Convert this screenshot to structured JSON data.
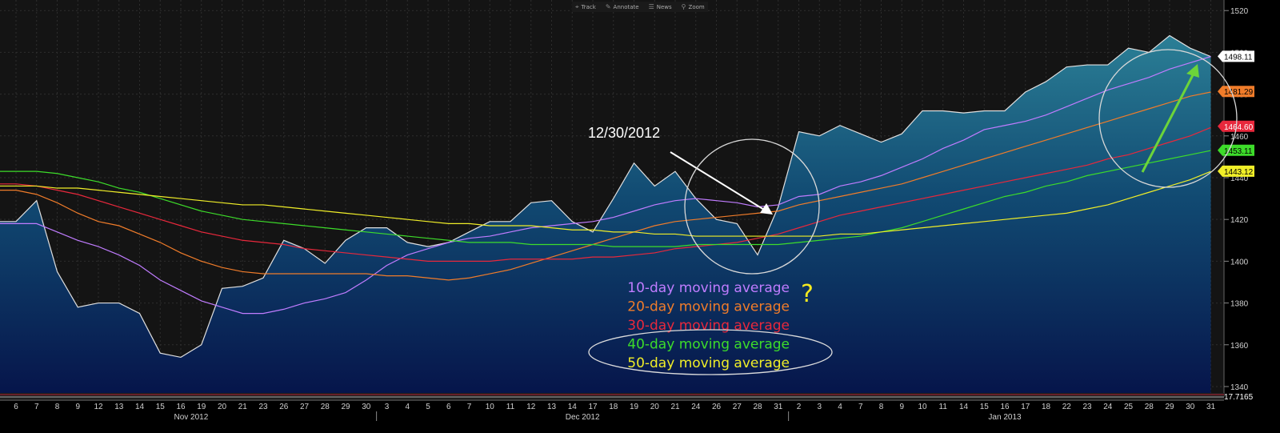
{
  "toolbar": {
    "buttons": [
      {
        "label": "Track",
        "icon": "track-icon"
      },
      {
        "label": "Annotate",
        "icon": "pencil-icon"
      },
      {
        "label": "News",
        "icon": "news-icon"
      },
      {
        "label": "Zoom",
        "icon": "zoom-icon"
      }
    ]
  },
  "annotations": {
    "date_label": "12/30/2012",
    "question_mark": "?",
    "legend": [
      {
        "text": "10-day moving average",
        "color": "#c07cff"
      },
      {
        "text": "20-day moving average",
        "color": "#f07c2a"
      },
      {
        "text": "30-day moving average",
        "color": "#e8283c"
      },
      {
        "text": "40-day moving average",
        "color": "#3ddc2a"
      },
      {
        "text": "50-day moving average",
        "color": "#f0ee28"
      }
    ]
  },
  "price_tags": [
    {
      "text": "1498.11",
      "value": 1498.11,
      "bg": "#ffffff",
      "fg": "#000000"
    },
    {
      "text": "1481.29",
      "value": 1481.29,
      "bg": "#f07c2a",
      "fg": "#000000"
    },
    {
      "text": "1464.60",
      "value": 1464.6,
      "bg": "#e8283c",
      "fg": "#ffffff"
    },
    {
      "text": "1453.11",
      "value": 1453.11,
      "bg": "#3ddc2a",
      "fg": "#000000"
    },
    {
      "text": "1443.12",
      "value": 1443.12,
      "bg": "#f0ee28",
      "fg": "#000000"
    }
  ],
  "lower_panel_label": "17.7165",
  "chart_data": {
    "type": "line",
    "x": [
      "Nov 6",
      "Nov 7",
      "Nov 8",
      "Nov 9",
      "Nov 12",
      "Nov 13",
      "Nov 14",
      "Nov 15",
      "Nov 16",
      "Nov 19",
      "Nov 20",
      "Nov 21",
      "Nov 23",
      "Nov 26",
      "Nov 27",
      "Nov 28",
      "Nov 29",
      "Nov 30",
      "Dec 3",
      "Dec 4",
      "Dec 5",
      "Dec 6",
      "Dec 7",
      "Dec 10",
      "Dec 11",
      "Dec 12",
      "Dec 13",
      "Dec 14",
      "Dec 17",
      "Dec 18",
      "Dec 19",
      "Dec 20",
      "Dec 21",
      "Dec 24",
      "Dec 26",
      "Dec 27",
      "Dec 28",
      "Dec 31",
      "Jan 2",
      "Jan 3",
      "Jan 4",
      "Jan 7",
      "Jan 8",
      "Jan 9",
      "Jan 10",
      "Jan 11",
      "Jan 14",
      "Jan 15",
      "Jan 16",
      "Jan 17",
      "Jan 18",
      "Jan 22",
      "Jan 23",
      "Jan 24",
      "Jan 25",
      "Jan 28",
      "Jan 29",
      "Jan 30",
      "Jan 31"
    ],
    "x_tick_labels": [
      "6",
      "7",
      "8",
      "9",
      "12",
      "13",
      "14",
      "15",
      "16",
      "19",
      "20",
      "21",
      "23",
      "26",
      "27",
      "28",
      "29",
      "30",
      "3",
      "4",
      "5",
      "6",
      "7",
      "10",
      "11",
      "12",
      "13",
      "14",
      "17",
      "18",
      "19",
      "20",
      "21",
      "24",
      "26",
      "27",
      "28",
      "31",
      "2",
      "3",
      "4",
      "7",
      "8",
      "9",
      "10",
      "11",
      "14",
      "15",
      "16",
      "17",
      "18",
      "22",
      "23",
      "24",
      "25",
      "28",
      "29",
      "30",
      "31"
    ],
    "month_labels": [
      {
        "label": "Nov 2012",
        "start": 0,
        "end": 17
      },
      {
        "label": "Dec 2012",
        "start": 18,
        "end": 37
      },
      {
        "label": "Jan 2013",
        "start": 38,
        "end": 58
      }
    ],
    "ylim": [
      1335,
      1522
    ],
    "yticks": [
      1340,
      1360,
      1380,
      1400,
      1420,
      1440,
      1460,
      1480,
      1500,
      1520
    ],
    "grid": true,
    "series": [
      {
        "name": "",
        "kind": "area",
        "color": "#e0e0e0",
        "values": [
          1419,
          1429,
          1395,
          1378,
          1380,
          1380,
          1375,
          1356,
          1354,
          1360,
          1387,
          1388,
          1392,
          1410,
          1406,
          1399,
          1410,
          1416,
          1416,
          1409,
          1407,
          1409,
          1414,
          1419,
          1419,
          1428,
          1429,
          1419,
          1414,
          1430,
          1447,
          1436,
          1443,
          1430,
          1420,
          1418,
          1403,
          1426,
          1462,
          1460,
          1465,
          1461,
          1457,
          1461,
          1472,
          1472,
          1471,
          1472,
          1472,
          1481,
          1486,
          1493,
          1494,
          1494,
          1502,
          1500,
          1508,
          1502,
          1498
        ]
      },
      {
        "name": "10-day moving average",
        "color": "#c07cff",
        "values": [
          1418,
          1418,
          1414,
          1410,
          1407,
          1403,
          1398,
          1391,
          1386,
          1381,
          1378,
          1375,
          1375,
          1377,
          1380,
          1382,
          1385,
          1391,
          1398,
          1403,
          1406,
          1409,
          1411,
          1412,
          1414,
          1416,
          1417,
          1418,
          1419,
          1421,
          1424,
          1427,
          1429,
          1430,
          1429,
          1428,
          1426,
          1427,
          1431,
          1432,
          1436,
          1438,
          1441,
          1445,
          1449,
          1454,
          1458,
          1463,
          1465,
          1467,
          1470,
          1474,
          1478,
          1482,
          1485,
          1488,
          1492,
          1495,
          1498
        ]
      },
      {
        "name": "20-day moving average",
        "color": "#f07c2a",
        "values": [
          1434,
          1432,
          1428,
          1423,
          1419,
          1417,
          1413,
          1409,
          1404,
          1400,
          1397,
          1395,
          1394,
          1394,
          1394,
          1394,
          1394,
          1394,
          1393,
          1393,
          1392,
          1391,
          1392,
          1394,
          1396,
          1399,
          1402,
          1405,
          1408,
          1411,
          1414,
          1417,
          1419,
          1420,
          1421,
          1422,
          1423,
          1424,
          1427,
          1429,
          1431,
          1433,
          1435,
          1437,
          1440,
          1443,
          1446,
          1449,
          1452,
          1455,
          1458,
          1461,
          1464,
          1467,
          1470,
          1473,
          1476,
          1479,
          1481
        ]
      },
      {
        "name": "30-day moving average",
        "color": "#e8283c",
        "values": [
          1437,
          1436,
          1434,
          1432,
          1429,
          1426,
          1423,
          1420,
          1417,
          1414,
          1412,
          1410,
          1409,
          1408,
          1406,
          1405,
          1404,
          1403,
          1402,
          1401,
          1400,
          1400,
          1400,
          1400,
          1401,
          1401,
          1401,
          1401,
          1402,
          1402,
          1403,
          1404,
          1406,
          1407,
          1408,
          1409,
          1411,
          1413,
          1416,
          1419,
          1422,
          1424,
          1426,
          1428,
          1430,
          1432,
          1434,
          1436,
          1438,
          1440,
          1442,
          1444,
          1446,
          1449,
          1451,
          1454,
          1457,
          1460,
          1464
        ]
      },
      {
        "name": "40-day moving average",
        "color": "#3ddc2a",
        "values": [
          1443,
          1443,
          1442,
          1440,
          1438,
          1435,
          1433,
          1430,
          1427,
          1424,
          1422,
          1420,
          1419,
          1418,
          1417,
          1416,
          1415,
          1414,
          1413,
          1412,
          1411,
          1410,
          1409,
          1409,
          1409,
          1408,
          1408,
          1408,
          1408,
          1407,
          1407,
          1407,
          1407,
          1408,
          1408,
          1408,
          1408,
          1408,
          1409,
          1410,
          1411,
          1412,
          1414,
          1416,
          1419,
          1422,
          1425,
          1428,
          1431,
          1433,
          1436,
          1438,
          1441,
          1443,
          1445,
          1447,
          1449,
          1451,
          1453
        ]
      },
      {
        "name": "50-day moving average",
        "color": "#f0ee28",
        "values": [
          1436,
          1436,
          1435,
          1435,
          1434,
          1433,
          1432,
          1431,
          1430,
          1429,
          1428,
          1427,
          1427,
          1426,
          1425,
          1424,
          1423,
          1422,
          1421,
          1420,
          1419,
          1418,
          1418,
          1417,
          1417,
          1417,
          1416,
          1415,
          1415,
          1414,
          1414,
          1413,
          1413,
          1412,
          1412,
          1412,
          1412,
          1412,
          1412,
          1412,
          1413,
          1413,
          1414,
          1415,
          1416,
          1417,
          1418,
          1419,
          1420,
          1421,
          1422,
          1423,
          1425,
          1427,
          1430,
          1433,
          1436,
          1439,
          1443
        ]
      }
    ],
    "lower_panel": {
      "value": 17.7165
    }
  }
}
